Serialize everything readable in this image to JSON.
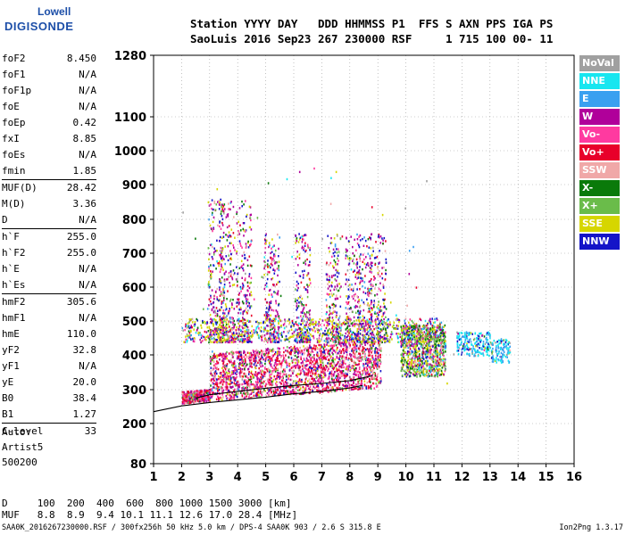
{
  "logo": {
    "line1": "Lowell",
    "line2": "DIGISONDE"
  },
  "header": {
    "line1": "Station YYYY DAY   DDD HHMMSS P1  FFS S AXN PPS IGA PS",
    "line2": "SaoLuis 2016 Sep23 267 230000 RSF     1 715 100 00- 11"
  },
  "params": [
    {
      "k": "foF2",
      "v": "8.450"
    },
    {
      "k": "foF1",
      "v": "N/A"
    },
    {
      "k": "foF1p",
      "v": "N/A"
    },
    {
      "k": "foE",
      "v": "N/A"
    },
    {
      "k": "foEp",
      "v": "0.42"
    },
    {
      "k": "fxI",
      "v": "8.85"
    },
    {
      "k": "foEs",
      "v": "N/A"
    },
    {
      "k": "fmin",
      "v": "1.85"
    },
    {
      "k": "MUF(D)",
      "v": "28.42"
    },
    {
      "k": "M(D)",
      "v": "3.36"
    },
    {
      "k": "D",
      "v": "N/A"
    },
    {
      "k": "h`F",
      "v": "255.0"
    },
    {
      "k": "h`F2",
      "v": "255.0"
    },
    {
      "k": "h`E",
      "v": "N/A"
    },
    {
      "k": "h`Es",
      "v": "N/A"
    },
    {
      "k": "hmF2",
      "v": "305.6"
    },
    {
      "k": "hmF1",
      "v": "N/A"
    },
    {
      "k": "hmE",
      "v": "110.0"
    },
    {
      "k": "yF2",
      "v": "32.8"
    },
    {
      "k": "yF1",
      "v": "N/A"
    },
    {
      "k": "yE",
      "v": "20.0"
    },
    {
      "k": "B0",
      "v": "38.4"
    },
    {
      "k": "B1",
      "v": "1.27"
    },
    {
      "k": "C-level",
      "v": "33"
    }
  ],
  "auto": {
    "l1": "Auto:",
    "l2": "Artist5",
    "l3": "500200"
  },
  "dmuf": {
    "line1": "D     100  200  400  600  800 1000 1500 3000 [km]",
    "line2": "MUF   8.8  8.9  9.4 10.1 11.1 12.6 17.0 28.4 [MHz]"
  },
  "footer": {
    "left": "SAA0K_2016267230000.RSF / 300fx256h 50 kHz 5.0 km / DPS-4 SAA0K 903 / 2.6 S 315.8 E",
    "right": "Ion2Png 1.3.17"
  },
  "legend": [
    {
      "name": "NoVal",
      "color": "#a0a0a0"
    },
    {
      "name": "NNE",
      "color": "#18e6f0"
    },
    {
      "name": "E",
      "color": "#3aa0f0"
    },
    {
      "name": "W",
      "color": "#b0009a"
    },
    {
      "name": "Vo-",
      "color": "#ff3aa0"
    },
    {
      "name": "Vo+",
      "color": "#e8002a"
    },
    {
      "name": "SSW",
      "color": "#f0a8a8"
    },
    {
      "name": "X-",
      "color": "#0a7a0a"
    },
    {
      "name": "X+",
      "color": "#6abc4a"
    },
    {
      "name": "SSE",
      "color": "#d6d600"
    },
    {
      "name": "NNW",
      "color": "#1414c8"
    }
  ],
  "chart_data": {
    "type": "scatter",
    "title": "",
    "xlabel": "",
    "ylabel": "",
    "xlim": [
      1,
      16
    ],
    "ylim": [
      80,
      1280
    ],
    "x_ticks": [
      1,
      2,
      3,
      4,
      5,
      6,
      7,
      8,
      9,
      10,
      11,
      12,
      13,
      14,
      15,
      16
    ],
    "y_ticks": [
      80,
      200,
      300,
      400,
      500,
      600,
      700,
      800,
      900,
      1000,
      1100,
      1280
    ],
    "grid": true,
    "legend_position": "right",
    "ionogram_bands": [
      {
        "name": "dense F-trace",
        "x": [
          2.9,
          9.1
        ],
        "y": [
          275,
          440
        ]
      },
      {
        "name": "spread-F plumes",
        "x": [
          3.0,
          9.1
        ],
        "y": [
          440,
          900
        ]
      },
      {
        "name": "upper trace",
        "x": [
          2.0,
          11.3
        ],
        "y": [
          440,
          520
        ]
      },
      {
        "name": "high-frequency echoes",
        "x": [
          9.8,
          13.8
        ],
        "y": [
          350,
          480
        ]
      }
    ],
    "traces": [
      {
        "name": "lower-fit",
        "x": [
          1.0,
          2,
          3,
          4,
          5,
          6,
          7,
          8,
          8.45
        ],
        "y": [
          235,
          252,
          262,
          270,
          278,
          288,
          295,
          305,
          312
        ]
      },
      {
        "name": "upper-fit",
        "x": [
          2.5,
          3,
          4,
          5,
          6,
          7,
          8,
          8.8
        ],
        "y": [
          275,
          285,
          295,
          304,
          312,
          318,
          326,
          340
        ]
      }
    ]
  }
}
